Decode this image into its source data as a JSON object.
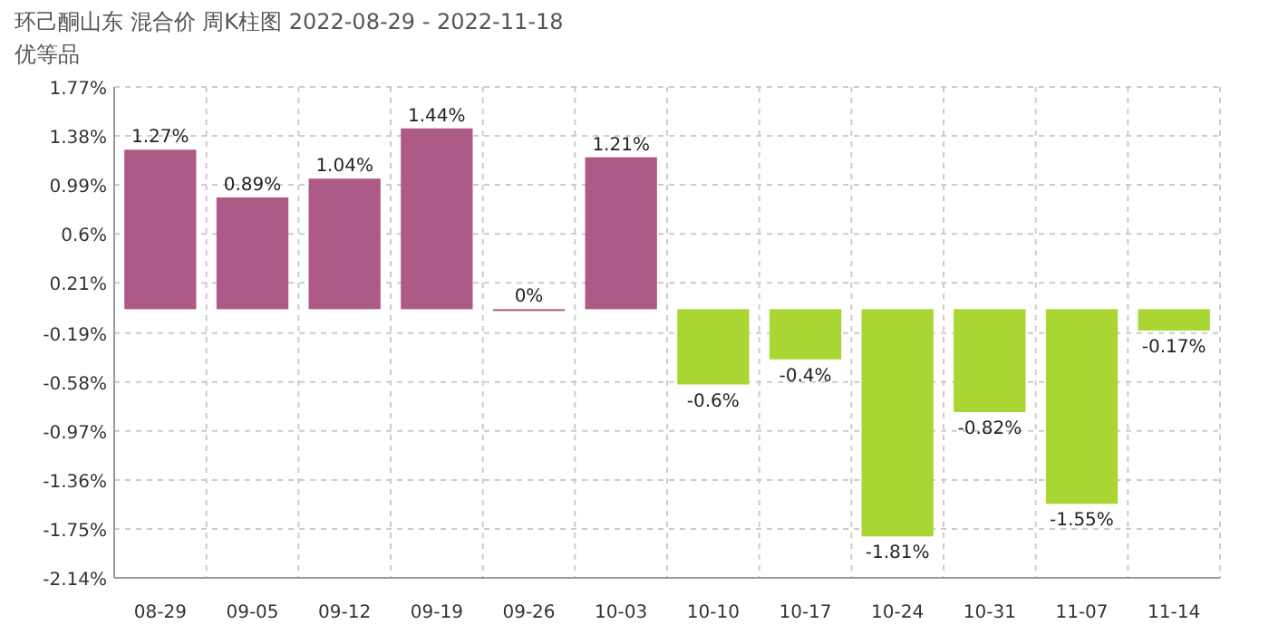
{
  "chart_data": {
    "type": "bar",
    "title": "环己酮山东 混合价 周K柱图 2022-08-29 - 2022-11-18",
    "subtitle": "优等品",
    "categories": [
      "08-29",
      "09-05",
      "09-12",
      "09-19",
      "09-26",
      "10-03",
      "10-10",
      "10-17",
      "10-24",
      "10-31",
      "11-07",
      "11-14"
    ],
    "values": [
      1.27,
      0.89,
      1.04,
      1.44,
      0,
      1.21,
      -0.6,
      -0.4,
      -1.81,
      -0.82,
      -1.55,
      -0.17
    ],
    "colors": [
      "#ad5a86",
      "#ad5a86",
      "#ad5a86",
      "#ad5a86",
      "#ad5a86",
      "#ad5a86",
      "#a9d633",
      "#a9d633",
      "#a9d633",
      "#a9d633",
      "#a9d633",
      "#a9d633"
    ],
    "value_labels": [
      "1.27%",
      "0.89%",
      "1.04%",
      "1.44%",
      "0%",
      "1.21%",
      "-0.6%",
      "-0.4%",
      "-1.81%",
      "-0.82%",
      "-1.55%",
      "-0.17%"
    ],
    "ylim": [
      -2.14,
      1.77
    ],
    "yticks": [
      {
        "value": 1.77,
        "label": "1.77%"
      },
      {
        "value": 1.38,
        "label": "1.38%"
      },
      {
        "value": 0.99,
        "label": "0.99%"
      },
      {
        "value": 0.6,
        "label": "0.6%"
      },
      {
        "value": 0.21,
        "label": "0.21%"
      },
      {
        "value": -0.19,
        "label": "-0.19%"
      },
      {
        "value": -0.58,
        "label": "-0.58%"
      },
      {
        "value": -0.97,
        "label": "-0.97%"
      },
      {
        "value": -1.36,
        "label": "-1.36%"
      },
      {
        "value": -1.75,
        "label": "-1.75%"
      },
      {
        "value": -2.14,
        "label": "-2.14%"
      }
    ],
    "grid": true
  }
}
